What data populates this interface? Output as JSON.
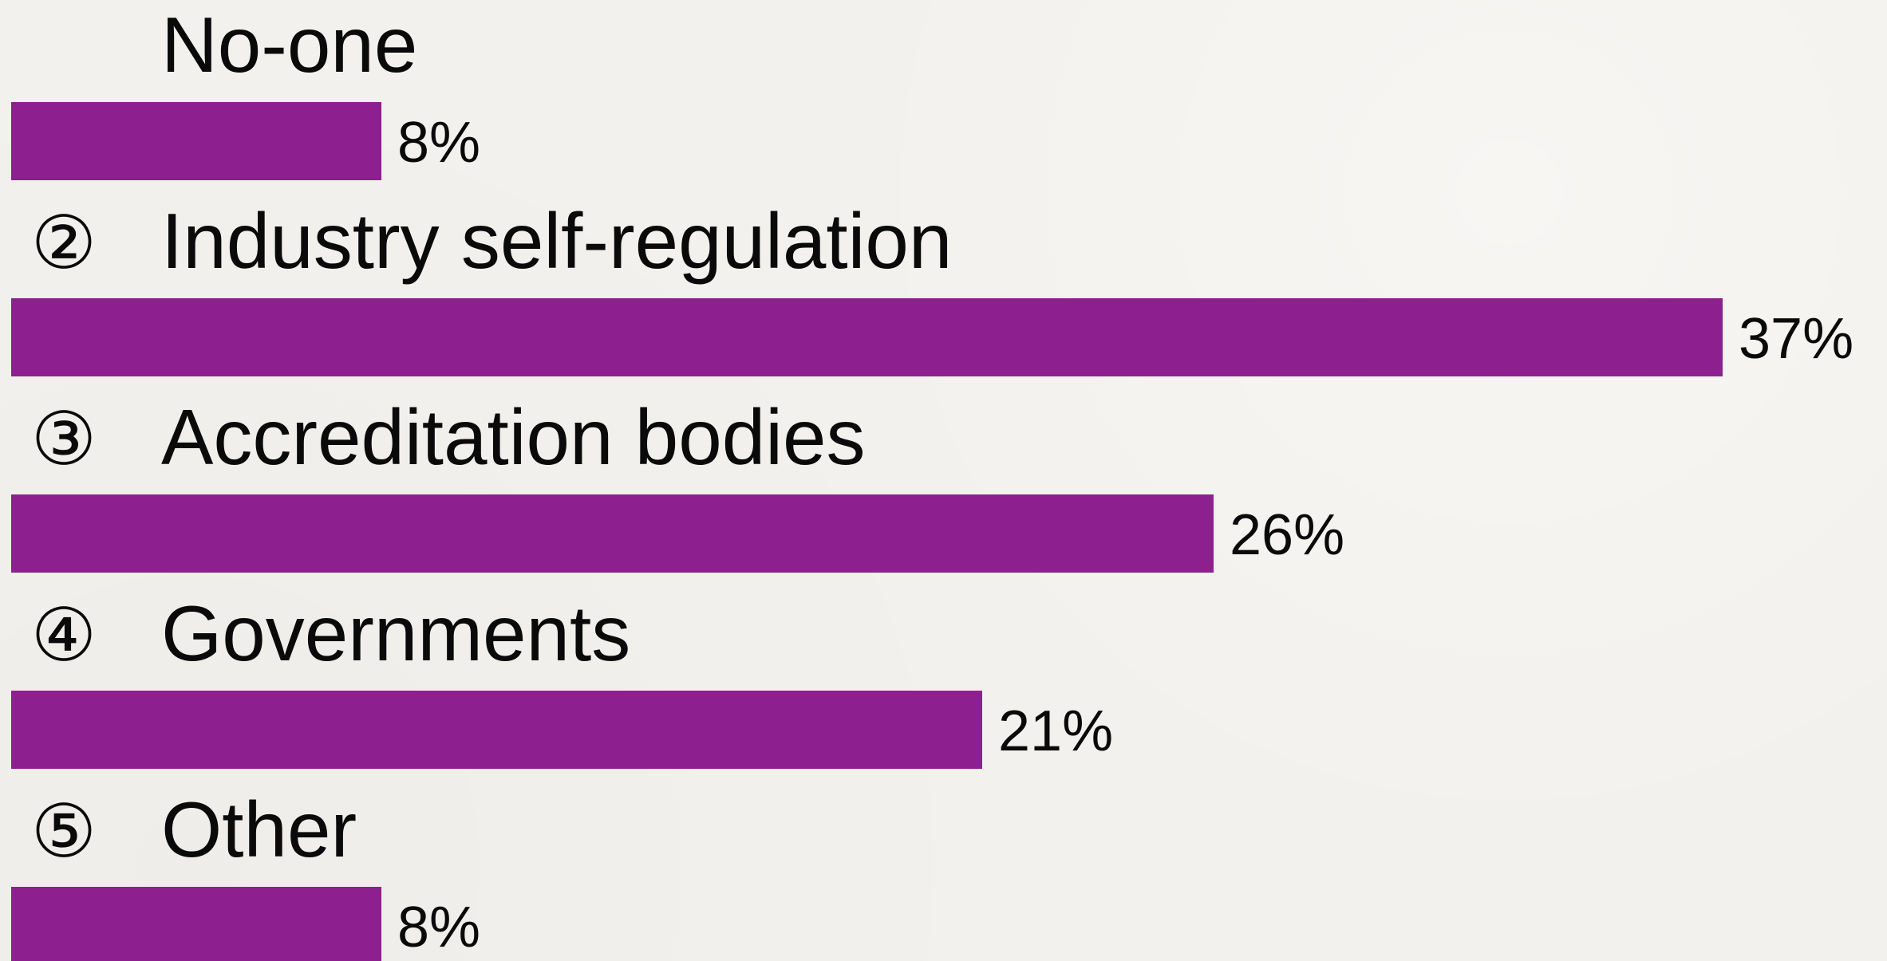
{
  "chart_data": {
    "type": "bar",
    "orientation": "horizontal",
    "categories": [
      "No-one",
      "Industry self-regulation",
      "Accreditation bodies",
      "Governments",
      "Other"
    ],
    "markers": [
      "",
      "②",
      "③",
      "④",
      "⑤"
    ],
    "values": [
      8,
      37,
      26,
      21,
      8
    ],
    "value_labels": [
      "8%",
      "37%",
      "26%",
      "21%",
      "8%"
    ],
    "unit": "%",
    "bar_color": "#8e1f8e",
    "background_color": "#f3f1ed",
    "title": "",
    "xlabel": "",
    "ylabel": "",
    "xlim": [
      0,
      37
    ],
    "grid": false,
    "legend": "none"
  }
}
